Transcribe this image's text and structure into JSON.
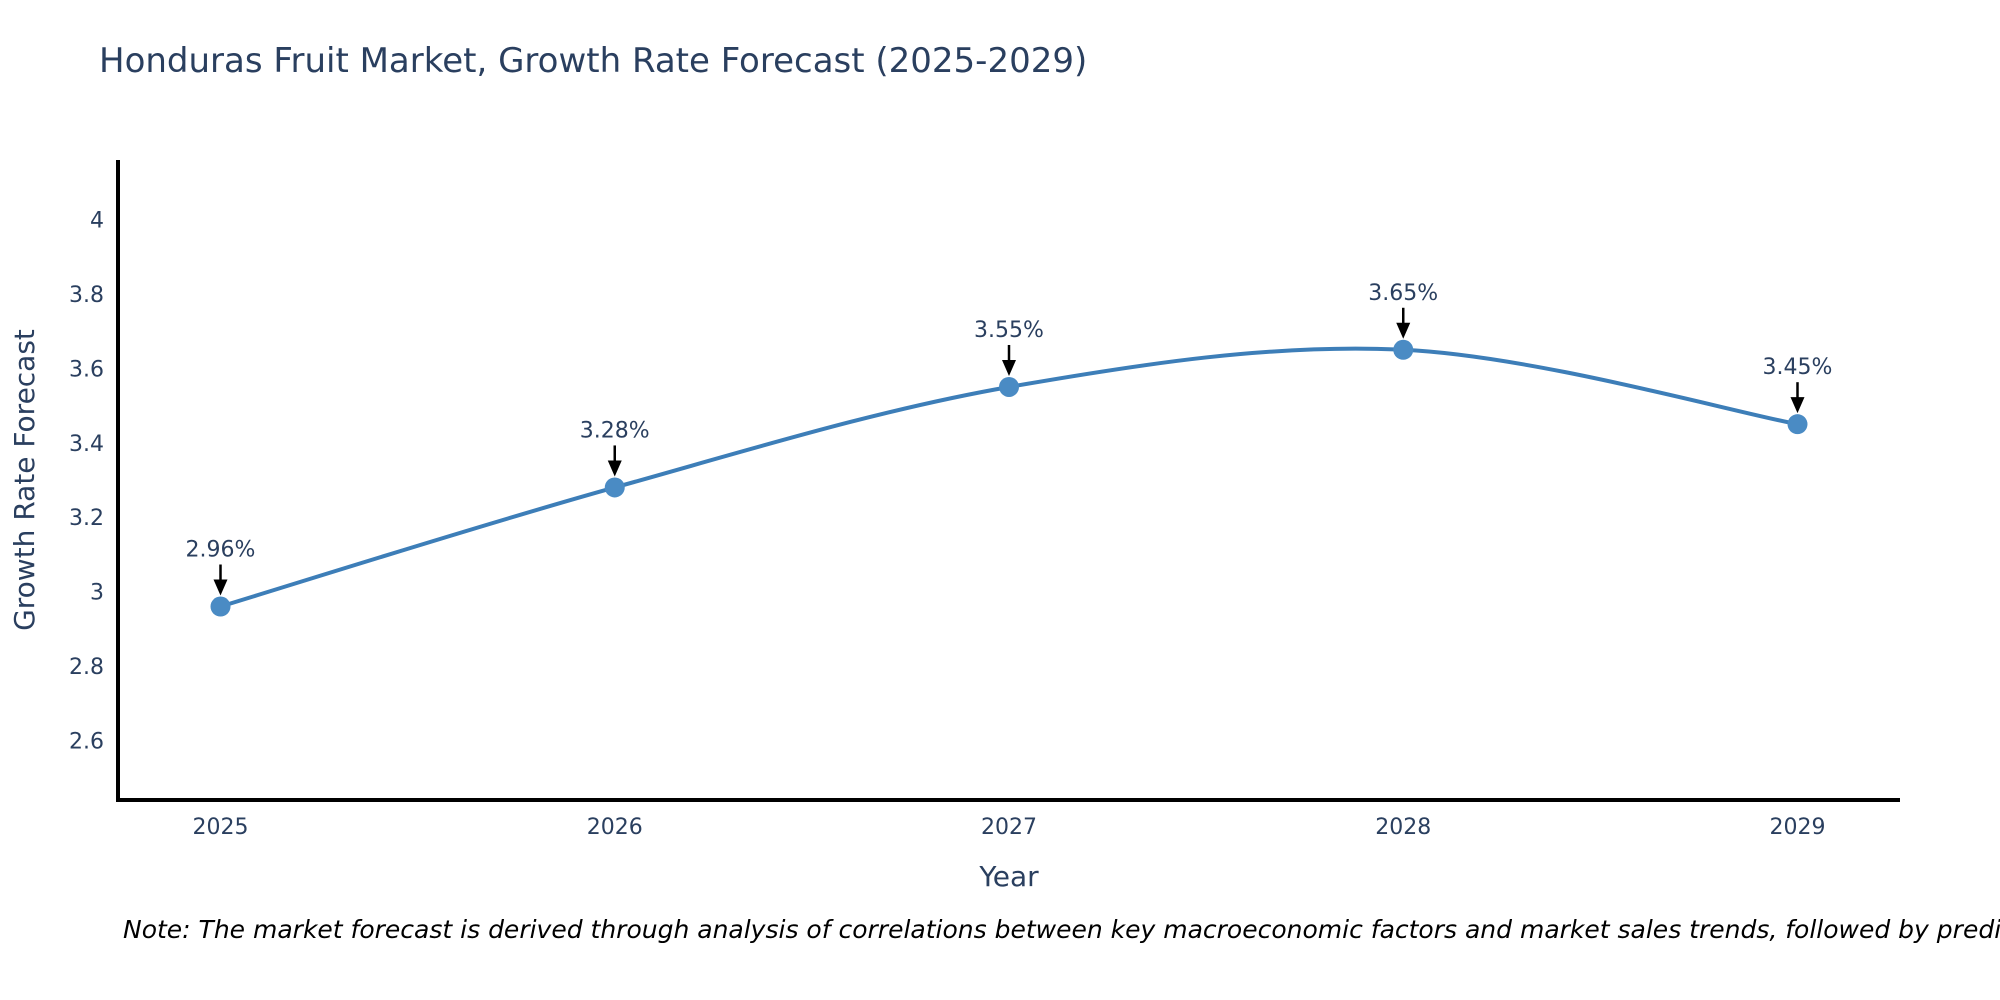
{
  "title": "Honduras Fruit Market, Growth Rate Forecast (2025-2029)",
  "note": "Note: The market forecast is derived through analysis of correlations between key macroeconomic factors and market sales trends, followed by predictive modeling to project future sales",
  "colors": {
    "text": "#2a3f5f",
    "axis": "#000000",
    "line": "#3d7eb8",
    "marker": "#4a8bc4",
    "arrow": "#000000",
    "background": "#ffffff"
  },
  "chart_data": {
    "type": "line",
    "curve": "spline",
    "title": "Honduras Fruit Market, Growth Rate Forecast (2025-2029)",
    "xlabel": "Year",
    "ylabel": "Growth Rate Forecast",
    "x": [
      2025,
      2026,
      2027,
      2028,
      2029
    ],
    "y": [
      2.96,
      3.28,
      3.55,
      3.65,
      3.45
    ],
    "point_labels": [
      "2.96%",
      "3.28%",
      "3.55%",
      "3.65%",
      "3.45%"
    ],
    "x_ticks": {
      "values": [
        2025,
        2026,
        2027,
        2028,
        2029
      ],
      "labels": [
        "2025",
        "2026",
        "2027",
        "2028",
        "2029"
      ]
    },
    "y_ticks": {
      "values": [
        2.6,
        2.8,
        3,
        3.2,
        3.4,
        3.6,
        3.8,
        4
      ],
      "labels": [
        "2.6",
        "2.8",
        "3",
        "3.2",
        "3.4",
        "3.6",
        "3.8",
        "4"
      ]
    },
    "xlim": [
      2024.74,
      2029.26
    ],
    "ylim": [
      2.44,
      4.16
    ],
    "grid": false,
    "legend": "none",
    "annotations": "value labels with downward arrows above each point"
  }
}
